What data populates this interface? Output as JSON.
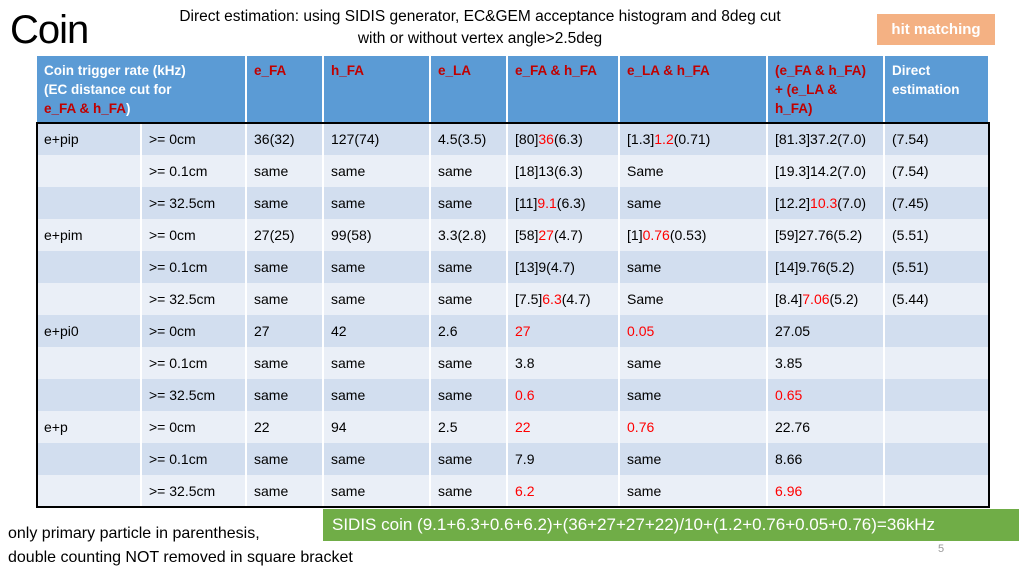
{
  "title": "Coin",
  "subtitle": {
    "line1": "Direct estimation: using SIDIS generator, EC&GEM acceptance histogram and 8deg cut",
    "line2": "with or without vertex angle>2.5deg"
  },
  "badge": "hit matching",
  "colors": {
    "header": "#5b9bd5",
    "row_dark": "#d2deef",
    "row_light": "#eaeff7",
    "badge": "#f4b183",
    "summary": "#70ad47",
    "highlight": "#ff0000"
  },
  "headers": {
    "col0_line1": "Coin trigger rate (kHz)",
    "col0_line2": "(EC distance cut for",
    "col0_line3a": "e_FA & h_FA",
    "col0_line3b": ")",
    "e_fa": "e_FA",
    "h_fa": "h_FA",
    "e_la": "e_LA",
    "e_fa_h_fa": "e_FA & h_FA",
    "e_la_h_fa": "e_LA & h_FA",
    "combined_line1": "(e_FA & h_FA)",
    "combined_line2": "+ (e_LA &",
    "combined_line3": "h_FA)",
    "direct_line1": "Direct",
    "direct_line2": "estimation"
  },
  "rows": [
    {
      "particle": "e+pip",
      "cut": ">= 0cm",
      "e_fa": "36(32)",
      "h_fa": "127(74)",
      "e_la": "4.5(3.5)",
      "fh": [
        {
          "t": "[80]",
          "r": false
        },
        {
          "t": "36",
          "r": true
        },
        {
          "t": "(6.3)",
          "r": false
        }
      ],
      "lh": [
        {
          "t": "[1.3]",
          "r": false
        },
        {
          "t": "1.2",
          "r": true
        },
        {
          "t": "(0.71)",
          "r": false
        }
      ],
      "comb": [
        {
          "t": "[81.3]37.2(7.0)",
          "r": false
        }
      ],
      "direct": "(7.54)"
    },
    {
      "particle": "",
      "cut": ">= 0.1cm",
      "e_fa": "same",
      "h_fa": "same",
      "e_la": "same",
      "fh": [
        {
          "t": "[18]13(6.3)",
          "r": false
        }
      ],
      "lh": [
        {
          "t": "Same",
          "r": false
        }
      ],
      "comb": [
        {
          "t": "[19.3]14.2(7.0)",
          "r": false
        }
      ],
      "direct": "(7.54)"
    },
    {
      "particle": "",
      "cut": ">= 32.5cm",
      "e_fa": "same",
      "h_fa": "same",
      "e_la": "same",
      "fh": [
        {
          "t": "[11]",
          "r": false
        },
        {
          "t": "9.1",
          "r": true
        },
        {
          "t": "(6.3)",
          "r": false
        }
      ],
      "lh": [
        {
          "t": "same",
          "r": false
        }
      ],
      "comb": [
        {
          "t": "[12.2]",
          "r": false
        },
        {
          "t": "10.3",
          "r": true
        },
        {
          "t": "(7.0)",
          "r": false
        }
      ],
      "direct": "(7.45)"
    },
    {
      "particle": "e+pim",
      "cut": ">= 0cm",
      "e_fa": "27(25)",
      "h_fa": "99(58)",
      "e_la": "3.3(2.8)",
      "fh": [
        {
          "t": "[58]",
          "r": false
        },
        {
          "t": "27",
          "r": true
        },
        {
          "t": "(4.7)",
          "r": false
        }
      ],
      "lh": [
        {
          "t": "[1]",
          "r": false
        },
        {
          "t": "0.76",
          "r": true
        },
        {
          "t": "(0.53)",
          "r": false
        }
      ],
      "comb": [
        {
          "t": "[59]27.76(5.2)",
          "r": false
        }
      ],
      "direct": "(5.51)"
    },
    {
      "particle": "",
      "cut": ">= 0.1cm",
      "e_fa": "same",
      "h_fa": "same",
      "e_la": "same",
      "fh": [
        {
          "t": "[13]9(4.7)",
          "r": false
        }
      ],
      "lh": [
        {
          "t": "same",
          "r": false
        }
      ],
      "comb": [
        {
          "t": "[14]9.76(5.2)",
          "r": false
        }
      ],
      "direct": "(5.51)"
    },
    {
      "particle": "",
      "cut": ">= 32.5cm",
      "e_fa": "same",
      "h_fa": "same",
      "e_la": "same",
      "fh": [
        {
          "t": "[7.5]",
          "r": false
        },
        {
          "t": "6.3",
          "r": true
        },
        {
          "t": "(4.7)",
          "r": false
        }
      ],
      "lh": [
        {
          "t": "Same",
          "r": false
        }
      ],
      "comb": [
        {
          "t": "[8.4]",
          "r": false
        },
        {
          "t": "7.06",
          "r": true
        },
        {
          "t": "(5.2)",
          "r": false
        }
      ],
      "direct": "(5.44)"
    },
    {
      "particle": "e+pi0",
      "cut": ">= 0cm",
      "e_fa": "27",
      "h_fa": "42",
      "e_la": "2.6",
      "fh": [
        {
          "t": "27",
          "r": true
        }
      ],
      "lh": [
        {
          "t": "0.05",
          "r": true
        }
      ],
      "comb": [
        {
          "t": "27.05",
          "r": false
        }
      ],
      "direct": ""
    },
    {
      "particle": "",
      "cut": ">= 0.1cm",
      "e_fa": "same",
      "h_fa": "same",
      "e_la": "same",
      "fh": [
        {
          "t": "3.8",
          "r": false
        }
      ],
      "lh": [
        {
          "t": "same",
          "r": false
        }
      ],
      "comb": [
        {
          "t": "3.85",
          "r": false
        }
      ],
      "direct": ""
    },
    {
      "particle": "",
      "cut": ">= 32.5cm",
      "e_fa": "same",
      "h_fa": "same",
      "e_la": "same",
      "fh": [
        {
          "t": "0.6",
          "r": true
        }
      ],
      "lh": [
        {
          "t": "same",
          "r": false
        }
      ],
      "comb": [
        {
          "t": "0.65",
          "r": true
        }
      ],
      "direct": ""
    },
    {
      "particle": "e+p",
      "cut": ">= 0cm",
      "e_fa": "22",
      "h_fa": "94",
      "e_la": "2.5",
      "fh": [
        {
          "t": "22",
          "r": true
        }
      ],
      "lh": [
        {
          "t": "0.76",
          "r": true
        }
      ],
      "comb": [
        {
          "t": "22.76",
          "r": false
        }
      ],
      "direct": ""
    },
    {
      "particle": "",
      "cut": ">= 0.1cm",
      "e_fa": "same",
      "h_fa": "same",
      "e_la": "same",
      "fh": [
        {
          "t": "7.9",
          "r": false
        }
      ],
      "lh": [
        {
          "t": "same",
          "r": false
        }
      ],
      "comb": [
        {
          "t": "8.66",
          "r": false
        }
      ],
      "direct": ""
    },
    {
      "particle": "",
      "cut": ">= 32.5cm",
      "e_fa": "same",
      "h_fa": "same",
      "e_la": "same",
      "fh": [
        {
          "t": "6.2",
          "r": true
        }
      ],
      "lh": [
        {
          "t": "same",
          "r": false
        }
      ],
      "comb": [
        {
          "t": "6.96",
          "r": true
        }
      ],
      "direct": ""
    }
  ],
  "summary": "SIDIS coin (9.1+6.3+0.6+6.2)+(36+27+27+22)/10+(1.2+0.76+0.05+0.76)=36kHz",
  "footnote": {
    "line1": "only primary particle in parenthesis,",
    "line2": "double counting NOT removed in square bracket"
  },
  "page_number": "5"
}
